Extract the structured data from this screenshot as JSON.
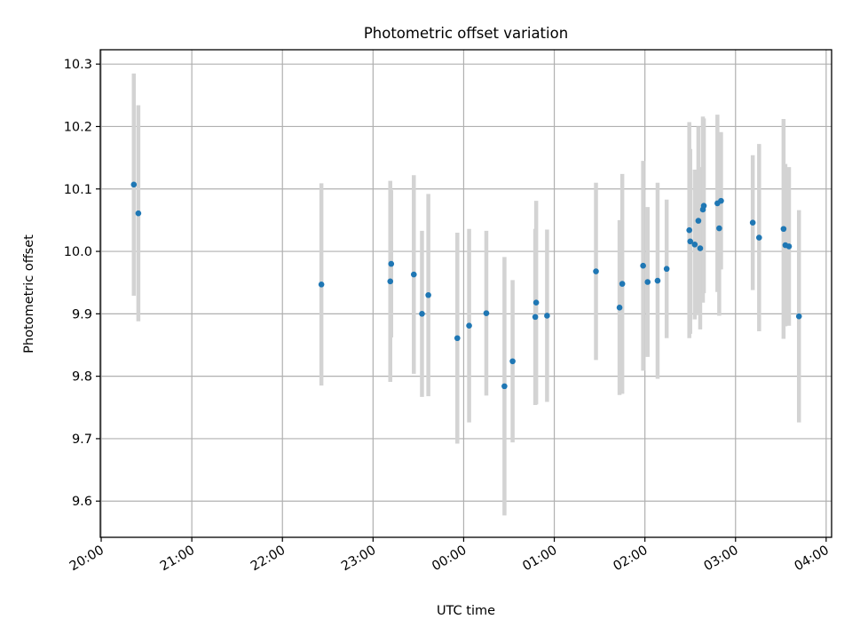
{
  "chart_data": {
    "type": "scatter",
    "title": "Photometric offset variation",
    "xlabel": "UTC time",
    "ylabel": "Photometric offset",
    "x_tick_labels": [
      "20:00",
      "21:00",
      "22:00",
      "23:00",
      "00:00",
      "01:00",
      "02:00",
      "03:00",
      "04:00"
    ],
    "y_tick_labels": [
      "9.6",
      "9.7",
      "9.8",
      "9.9",
      "10.0",
      "10.1",
      "10.2",
      "10.3"
    ],
    "xlim_hours": [
      19.99,
      28.06
    ],
    "ylim": [
      9.542,
      10.323
    ],
    "grid": true,
    "point_color": "#1f77b4",
    "errorbar_color": "#d3d3d3",
    "points": [
      {
        "t": 20.36,
        "y": 10.107,
        "err": 0.178
      },
      {
        "t": 20.41,
        "y": 10.061,
        "err": 0.173
      },
      {
        "t": 22.43,
        "y": 9.947,
        "err": 0.162
      },
      {
        "t": 23.19,
        "y": 9.952,
        "err": 0.161
      },
      {
        "t": 23.2,
        "y": 9.98,
        "err": 0.118
      },
      {
        "t": 23.45,
        "y": 9.963,
        "err": 0.159
      },
      {
        "t": 23.54,
        "y": 9.9,
        "err": 0.133
      },
      {
        "t": 23.61,
        "y": 9.93,
        "err": 0.162
      },
      {
        "t": 23.93,
        "y": 9.861,
        "err": 0.169
      },
      {
        "t": 24.06,
        "y": 9.881,
        "err": 0.155
      },
      {
        "t": 24.25,
        "y": 9.901,
        "err": 0.132
      },
      {
        "t": 24.45,
        "y": 9.784,
        "err": 0.207
      },
      {
        "t": 24.54,
        "y": 9.824,
        "err": 0.13
      },
      {
        "t": 24.79,
        "y": 9.895,
        "err": 0.141
      },
      {
        "t": 24.8,
        "y": 9.918,
        "err": 0.163
      },
      {
        "t": 24.92,
        "y": 9.897,
        "err": 0.138
      },
      {
        "t": 25.46,
        "y": 9.968,
        "err": 0.142
      },
      {
        "t": 25.72,
        "y": 9.91,
        "err": 0.14
      },
      {
        "t": 25.75,
        "y": 9.948,
        "err": 0.176
      },
      {
        "t": 25.98,
        "y": 9.977,
        "err": 0.168
      },
      {
        "t": 26.03,
        "y": 9.951,
        "err": 0.12
      },
      {
        "t": 26.14,
        "y": 9.953,
        "err": 0.157
      },
      {
        "t": 26.24,
        "y": 9.972,
        "err": 0.111
      },
      {
        "t": 26.49,
        "y": 10.034,
        "err": 0.173
      },
      {
        "t": 26.5,
        "y": 10.016,
        "err": 0.148
      },
      {
        "t": 26.55,
        "y": 10.011,
        "err": 0.12
      },
      {
        "t": 26.59,
        "y": 10.049,
        "err": 0.151
      },
      {
        "t": 26.61,
        "y": 10.005,
        "err": 0.13
      },
      {
        "t": 26.64,
        "y": 10.067,
        "err": 0.149
      },
      {
        "t": 26.65,
        "y": 10.073,
        "err": 0.14
      },
      {
        "t": 26.8,
        "y": 10.077,
        "err": 0.142
      },
      {
        "t": 26.82,
        "y": 10.037,
        "err": 0.14
      },
      {
        "t": 26.84,
        "y": 10.081,
        "err": 0.11
      },
      {
        "t": 27.19,
        "y": 10.046,
        "err": 0.108
      },
      {
        "t": 27.26,
        "y": 10.022,
        "err": 0.15
      },
      {
        "t": 27.53,
        "y": 10.036,
        "err": 0.176
      },
      {
        "t": 27.55,
        "y": 10.01,
        "err": 0.13
      },
      {
        "t": 27.59,
        "y": 10.008,
        "err": 0.127
      },
      {
        "t": 27.7,
        "y": 9.896,
        "err": 0.17
      }
    ]
  }
}
